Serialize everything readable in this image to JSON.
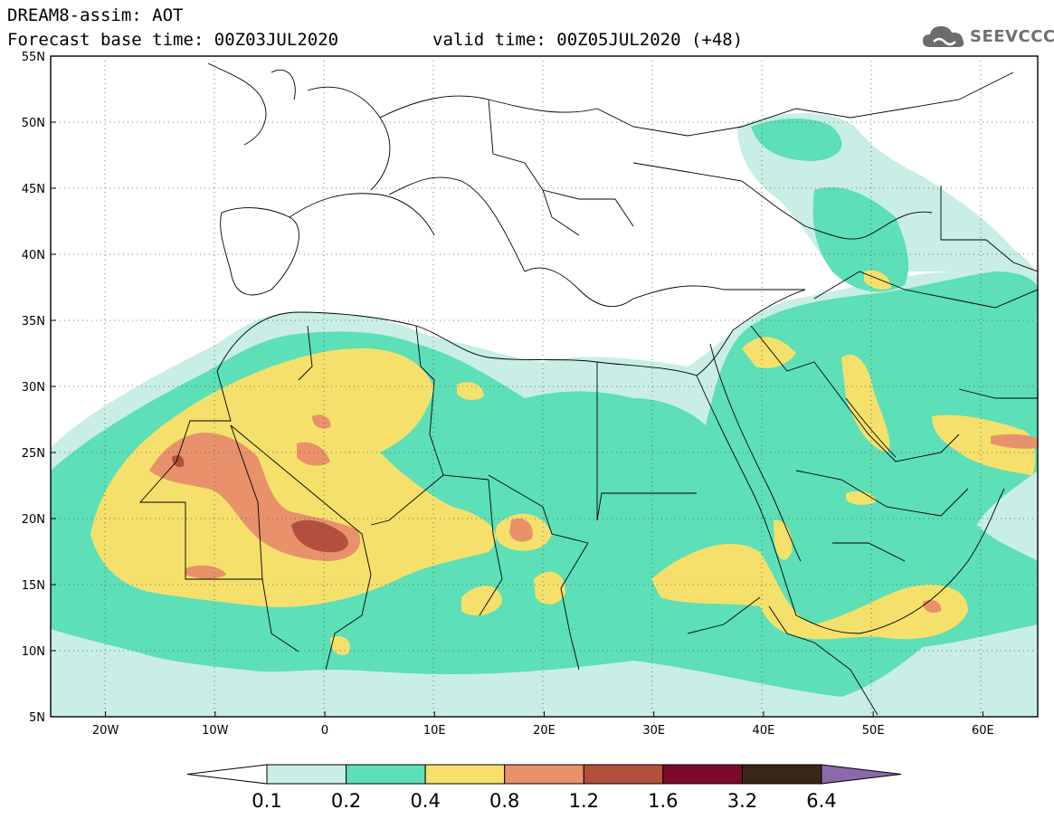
{
  "header": {
    "title": "DREAM8-assim: AOT",
    "base_time": "Forecast base time: 00Z03JUL2020",
    "valid_time": "valid time: 00Z05JUL2020 (+48)"
  },
  "logo": {
    "text": "SEEVCCC",
    "icon": "cloud-icon"
  },
  "map": {
    "lat_range": [
      5,
      55
    ],
    "lon_range": [
      -25,
      65
    ],
    "lat_ticks": [
      "55N",
      "50N",
      "45N",
      "40N",
      "35N",
      "30N",
      "25N",
      "20N",
      "15N",
      "10N",
      "5N"
    ],
    "lon_ticks": [
      "20W",
      "10W",
      "0",
      "10E",
      "20E",
      "30E",
      "40E",
      "50E",
      "60E"
    ]
  },
  "colorbar": {
    "levels": [
      "0.1",
      "0.2",
      "0.4",
      "0.8",
      "1.2",
      "1.6",
      "3.2",
      "6.4"
    ],
    "colors": [
      "#c8eee6",
      "#5ddfb7",
      "#f5e06c",
      "#e8916a",
      "#b2503d",
      "#7c0a2b",
      "#3a2617",
      "#8b6aab"
    ],
    "low_color": "#ffffff"
  }
}
